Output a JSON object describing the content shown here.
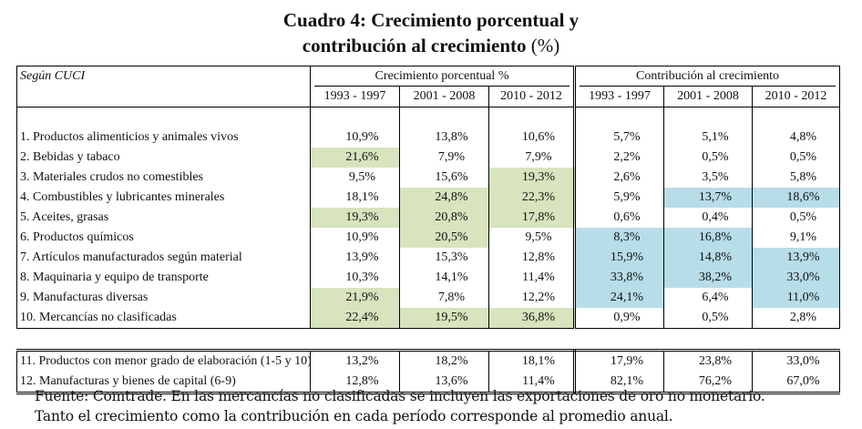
{
  "title": {
    "line1": "Cuadro 4: Crecimiento porcentual y",
    "line2": "contribución al crecimiento",
    "unit": "(%)"
  },
  "table": {
    "corner_label": "Según CUCI",
    "group_growth": "Crecimiento porcentual %",
    "group_contrib": "Contribución al crecimiento",
    "periods": [
      "1993 - 1997",
      "2001 - 2008",
      "2010 - 2012",
      "1993 - 1997",
      "2001 - 2008",
      "2010 - 2012"
    ],
    "rows": [
      {
        "label": "1. Productos alimenticios y animales vivos",
        "values": [
          "10,9%",
          "13,8%",
          "10,6%",
          "5,7%",
          "5,1%",
          "4,8%"
        ]
      },
      {
        "label": "2. Bebidas y tabaco",
        "values": [
          "21,6%",
          "7,9%",
          "7,9%",
          "2,2%",
          "0,5%",
          "0,5%"
        ]
      },
      {
        "label": "3. Materiales crudos no comestibles",
        "values": [
          "9,5%",
          "15,6%",
          "19,3%",
          "2,6%",
          "3,5%",
          "5,8%"
        ]
      },
      {
        "label": "4. Combustibles y lubricantes minerales",
        "values": [
          "18,1%",
          "24,8%",
          "22,3%",
          "5,9%",
          "13,7%",
          "18,6%"
        ]
      },
      {
        "label": "5. Aceites, grasas",
        "values": [
          "19,3%",
          "20,8%",
          "17,8%",
          "0,6%",
          "0,4%",
          "0,5%"
        ]
      },
      {
        "label": "6. Productos químicos",
        "values": [
          "10,9%",
          "20,5%",
          "9,5%",
          "8,3%",
          "16,8%",
          "9,1%"
        ]
      },
      {
        "label": "7. Artículos manufacturados según material",
        "values": [
          "13,9%",
          "15,3%",
          "12,8%",
          "15,9%",
          "14,8%",
          "13,9%"
        ]
      },
      {
        "label": "8. Maquinaria y equipo de transporte",
        "values": [
          "10,3%",
          "14,1%",
          "11,4%",
          "33,8%",
          "38,2%",
          "33,0%"
        ]
      },
      {
        "label": "9. Manufacturas diversas",
        "values": [
          "21,9%",
          "7,8%",
          "12,2%",
          "24,1%",
          "6,4%",
          "11,0%"
        ]
      },
      {
        "label": "10. Mercancías no clasificadas",
        "values": [
          "22,4%",
          "19,5%",
          "36,8%",
          "0,9%",
          "0,5%",
          "2,8%"
        ]
      }
    ],
    "summary_rows": [
      {
        "label": "11. Productos con menor grado de elaboración (1-5 y 10)",
        "values": [
          "13,2%",
          "18,2%",
          "18,1%",
          "17,9%",
          "23,8%",
          "33,0%"
        ]
      },
      {
        "label": "12. Manufacturas y bienes de capital (6-9)",
        "values": [
          "12,8%",
          "13,6%",
          "11,4%",
          "82,1%",
          "76,2%",
          "67,0%"
        ]
      }
    ],
    "highlight_colors": {
      "growth": "#d7e4bd",
      "contribution": "#b7dde8"
    }
  },
  "footnote": {
    "line1": "Fuente: Comtrade. En las mercancías no clasificadas se incluyen las exportaciones de oro no monetario.",
    "line2": "Tanto el crecimiento como la contribución en cada período corresponde al promedio anual."
  }
}
